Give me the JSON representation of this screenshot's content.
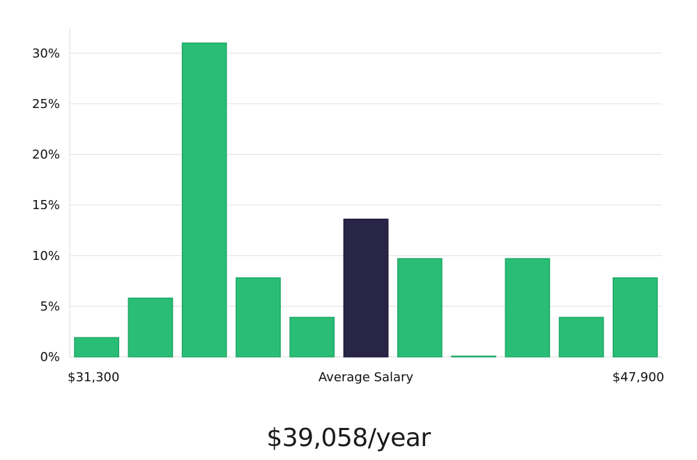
{
  "chart_data": {
    "type": "bar",
    "xlabel_left": "$31,300",
    "xlabel_center": "Average Salary",
    "xlabel_right": "$47,900",
    "values": [
      1.9,
      5.8,
      31.0,
      7.8,
      3.9,
      13.6,
      9.7,
      0.0,
      9.7,
      3.9,
      7.8
    ],
    "highlight_index": 5,
    "ylim": [
      0,
      32.5
    ],
    "yticks": [
      0,
      5,
      10,
      15,
      20,
      25,
      30
    ],
    "ytick_labels": [
      "0%",
      "5%",
      "10%",
      "15%",
      "20%",
      "25%",
      "30%"
    ],
    "grid": true,
    "colors": {
      "bar": "#2abd76",
      "bar_stroke": "#1fa866",
      "highlight": "#282546",
      "grid": "#e0e0e0",
      "axis": "#d8d8d8"
    }
  },
  "summary": {
    "average_salary": "$39,058/year"
  }
}
